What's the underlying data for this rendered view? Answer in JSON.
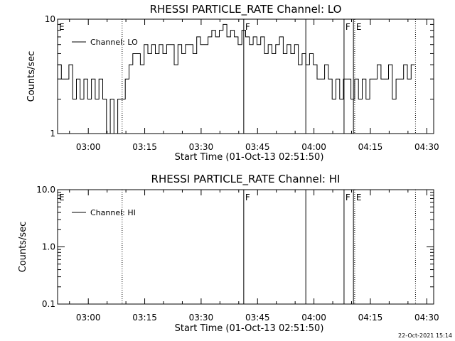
{
  "footer": {
    "date_stamp": "22-Oct-2021 15:14"
  },
  "chart_data": [
    {
      "type": "line",
      "title": "RHESSI PARTICLE_RATE Channel: LO",
      "xlabel": "Start Time (01-Oct-13 02:51:50)",
      "ylabel": "Counts/sec",
      "yscale": "log",
      "ylim": [
        1,
        10
      ],
      "yticks": [
        1,
        10
      ],
      "ytick_labels": [
        "1",
        "10"
      ],
      "xlim": [
        "02:51:50",
        "04:31:50"
      ],
      "xticks": [
        "03:00",
        "03:15",
        "03:30",
        "03:45",
        "04:00",
        "04:15",
        "04:30"
      ],
      "grid": false,
      "legend": {
        "entries": [
          "Channel: LO"
        ],
        "placement": "top-left"
      },
      "line_color": "#000000",
      "markers": [
        {
          "time": "02:51:50",
          "label": "E",
          "style": "dotted"
        },
        {
          "time": "03:09:00",
          "label": "",
          "style": "dotted"
        },
        {
          "time": "03:41:20",
          "label": "F",
          "style": "solid"
        },
        {
          "time": "03:57:50",
          "label": "",
          "style": "solid"
        },
        {
          "time": "04:08:00",
          "label": "F",
          "style": "solid"
        },
        {
          "time": "04:10:30",
          "label": "",
          "style": "solid"
        },
        {
          "time": "04:10:50",
          "label": "E",
          "style": "dotted"
        },
        {
          "time": "04:27:00",
          "label": "",
          "style": "dotted"
        }
      ],
      "series": [
        {
          "x": [
            "02:51:50",
            "02:52:50",
            "02:53:50",
            "02:54:50",
            "02:55:50",
            "02:56:50",
            "02:57:50",
            "02:58:50",
            "02:59:50",
            "03:00:50",
            "03:01:50",
            "03:02:50",
            "03:03:50",
            "03:04:50",
            "03:05:50",
            "03:06:50",
            "03:07:50",
            "03:08:50",
            "03:09:50",
            "03:10:50",
            "03:11:50",
            "03:12:50",
            "03:13:50",
            "03:14:50",
            "03:15:50",
            "03:16:50",
            "03:17:50",
            "03:18:50",
            "03:19:50",
            "03:20:50",
            "03:21:50",
            "03:22:50",
            "03:23:50",
            "03:24:50",
            "03:25:50",
            "03:26:50",
            "03:27:50",
            "03:28:50",
            "03:29:50",
            "03:30:50",
            "03:31:50",
            "03:32:50",
            "03:33:50",
            "03:34:50",
            "03:35:50",
            "03:36:50",
            "03:37:50",
            "03:38:50",
            "03:39:50",
            "03:40:50",
            "03:41:50",
            "03:42:50",
            "03:43:50",
            "03:44:50",
            "03:45:50",
            "03:46:50",
            "03:47:50",
            "03:48:50",
            "03:49:50",
            "03:50:50",
            "03:51:50",
            "03:52:50",
            "03:53:50",
            "03:54:50",
            "03:55:50",
            "03:56:50",
            "03:57:50",
            "03:58:50",
            "03:59:50",
            "04:00:50",
            "04:01:50",
            "04:02:50",
            "04:03:50",
            "04:04:50",
            "04:05:50",
            "04:06:50",
            "04:07:50",
            "04:08:50",
            "04:09:50",
            "04:10:50",
            "04:11:50",
            "04:12:50",
            "04:13:50",
            "04:14:50",
            "04:15:50",
            "04:16:50",
            "04:17:50",
            "04:18:50",
            "04:19:50",
            "04:20:50",
            "04:21:50",
            "04:22:50",
            "04:23:50",
            "04:24:50",
            "04:25:50",
            "04:26:50"
          ],
          "y": [
            4,
            3,
            3,
            4,
            2,
            3,
            2,
            3,
            2,
            3,
            2,
            3,
            2,
            1,
            2,
            1,
            2,
            2,
            3,
            4,
            5,
            5,
            4,
            6,
            5,
            6,
            5,
            6,
            5,
            6,
            6,
            4,
            6,
            5,
            6,
            6,
            5,
            7,
            6,
            6,
            7,
            8,
            7,
            8,
            9,
            7,
            8,
            7,
            6,
            8,
            7,
            6,
            7,
            6,
            7,
            5,
            6,
            5,
            6,
            7,
            5,
            6,
            5,
            6,
            4,
            5,
            4,
            5,
            4,
            3,
            3,
            4,
            3,
            2,
            3,
            2,
            3,
            3,
            2,
            3,
            2,
            3,
            2,
            3,
            3,
            4,
            3,
            3,
            4,
            2,
            3,
            3,
            4,
            3,
            4,
            4
          ]
        }
      ]
    },
    {
      "type": "line",
      "title": "RHESSI PARTICLE_RATE Channel: HI",
      "xlabel": "Start Time (01-Oct-13 02:51:50)",
      "ylabel": "Counts/sec",
      "yscale": "log",
      "ylim": [
        0.1,
        10
      ],
      "yticks": [
        0.1,
        1,
        10
      ],
      "ytick_labels": [
        "0.1",
        "1.0",
        "10.0"
      ],
      "xlim": [
        "02:51:50",
        "04:31:50"
      ],
      "xticks": [
        "03:00",
        "03:15",
        "03:30",
        "03:45",
        "04:00",
        "04:15",
        "04:30"
      ],
      "grid": false,
      "legend": {
        "entries": [
          "Channel: HI"
        ],
        "placement": "top-left"
      },
      "line_color": "#000000",
      "markers": [
        {
          "time": "02:51:50",
          "label": "E",
          "style": "dotted"
        },
        {
          "time": "03:09:00",
          "label": "",
          "style": "dotted"
        },
        {
          "time": "03:41:20",
          "label": "F",
          "style": "solid"
        },
        {
          "time": "03:57:50",
          "label": "",
          "style": "solid"
        },
        {
          "time": "04:08:00",
          "label": "F",
          "style": "solid"
        },
        {
          "time": "04:10:30",
          "label": "",
          "style": "solid"
        },
        {
          "time": "04:10:50",
          "label": "E",
          "style": "dotted"
        },
        {
          "time": "04:27:00",
          "label": "",
          "style": "dotted"
        }
      ],
      "series": []
    }
  ]
}
